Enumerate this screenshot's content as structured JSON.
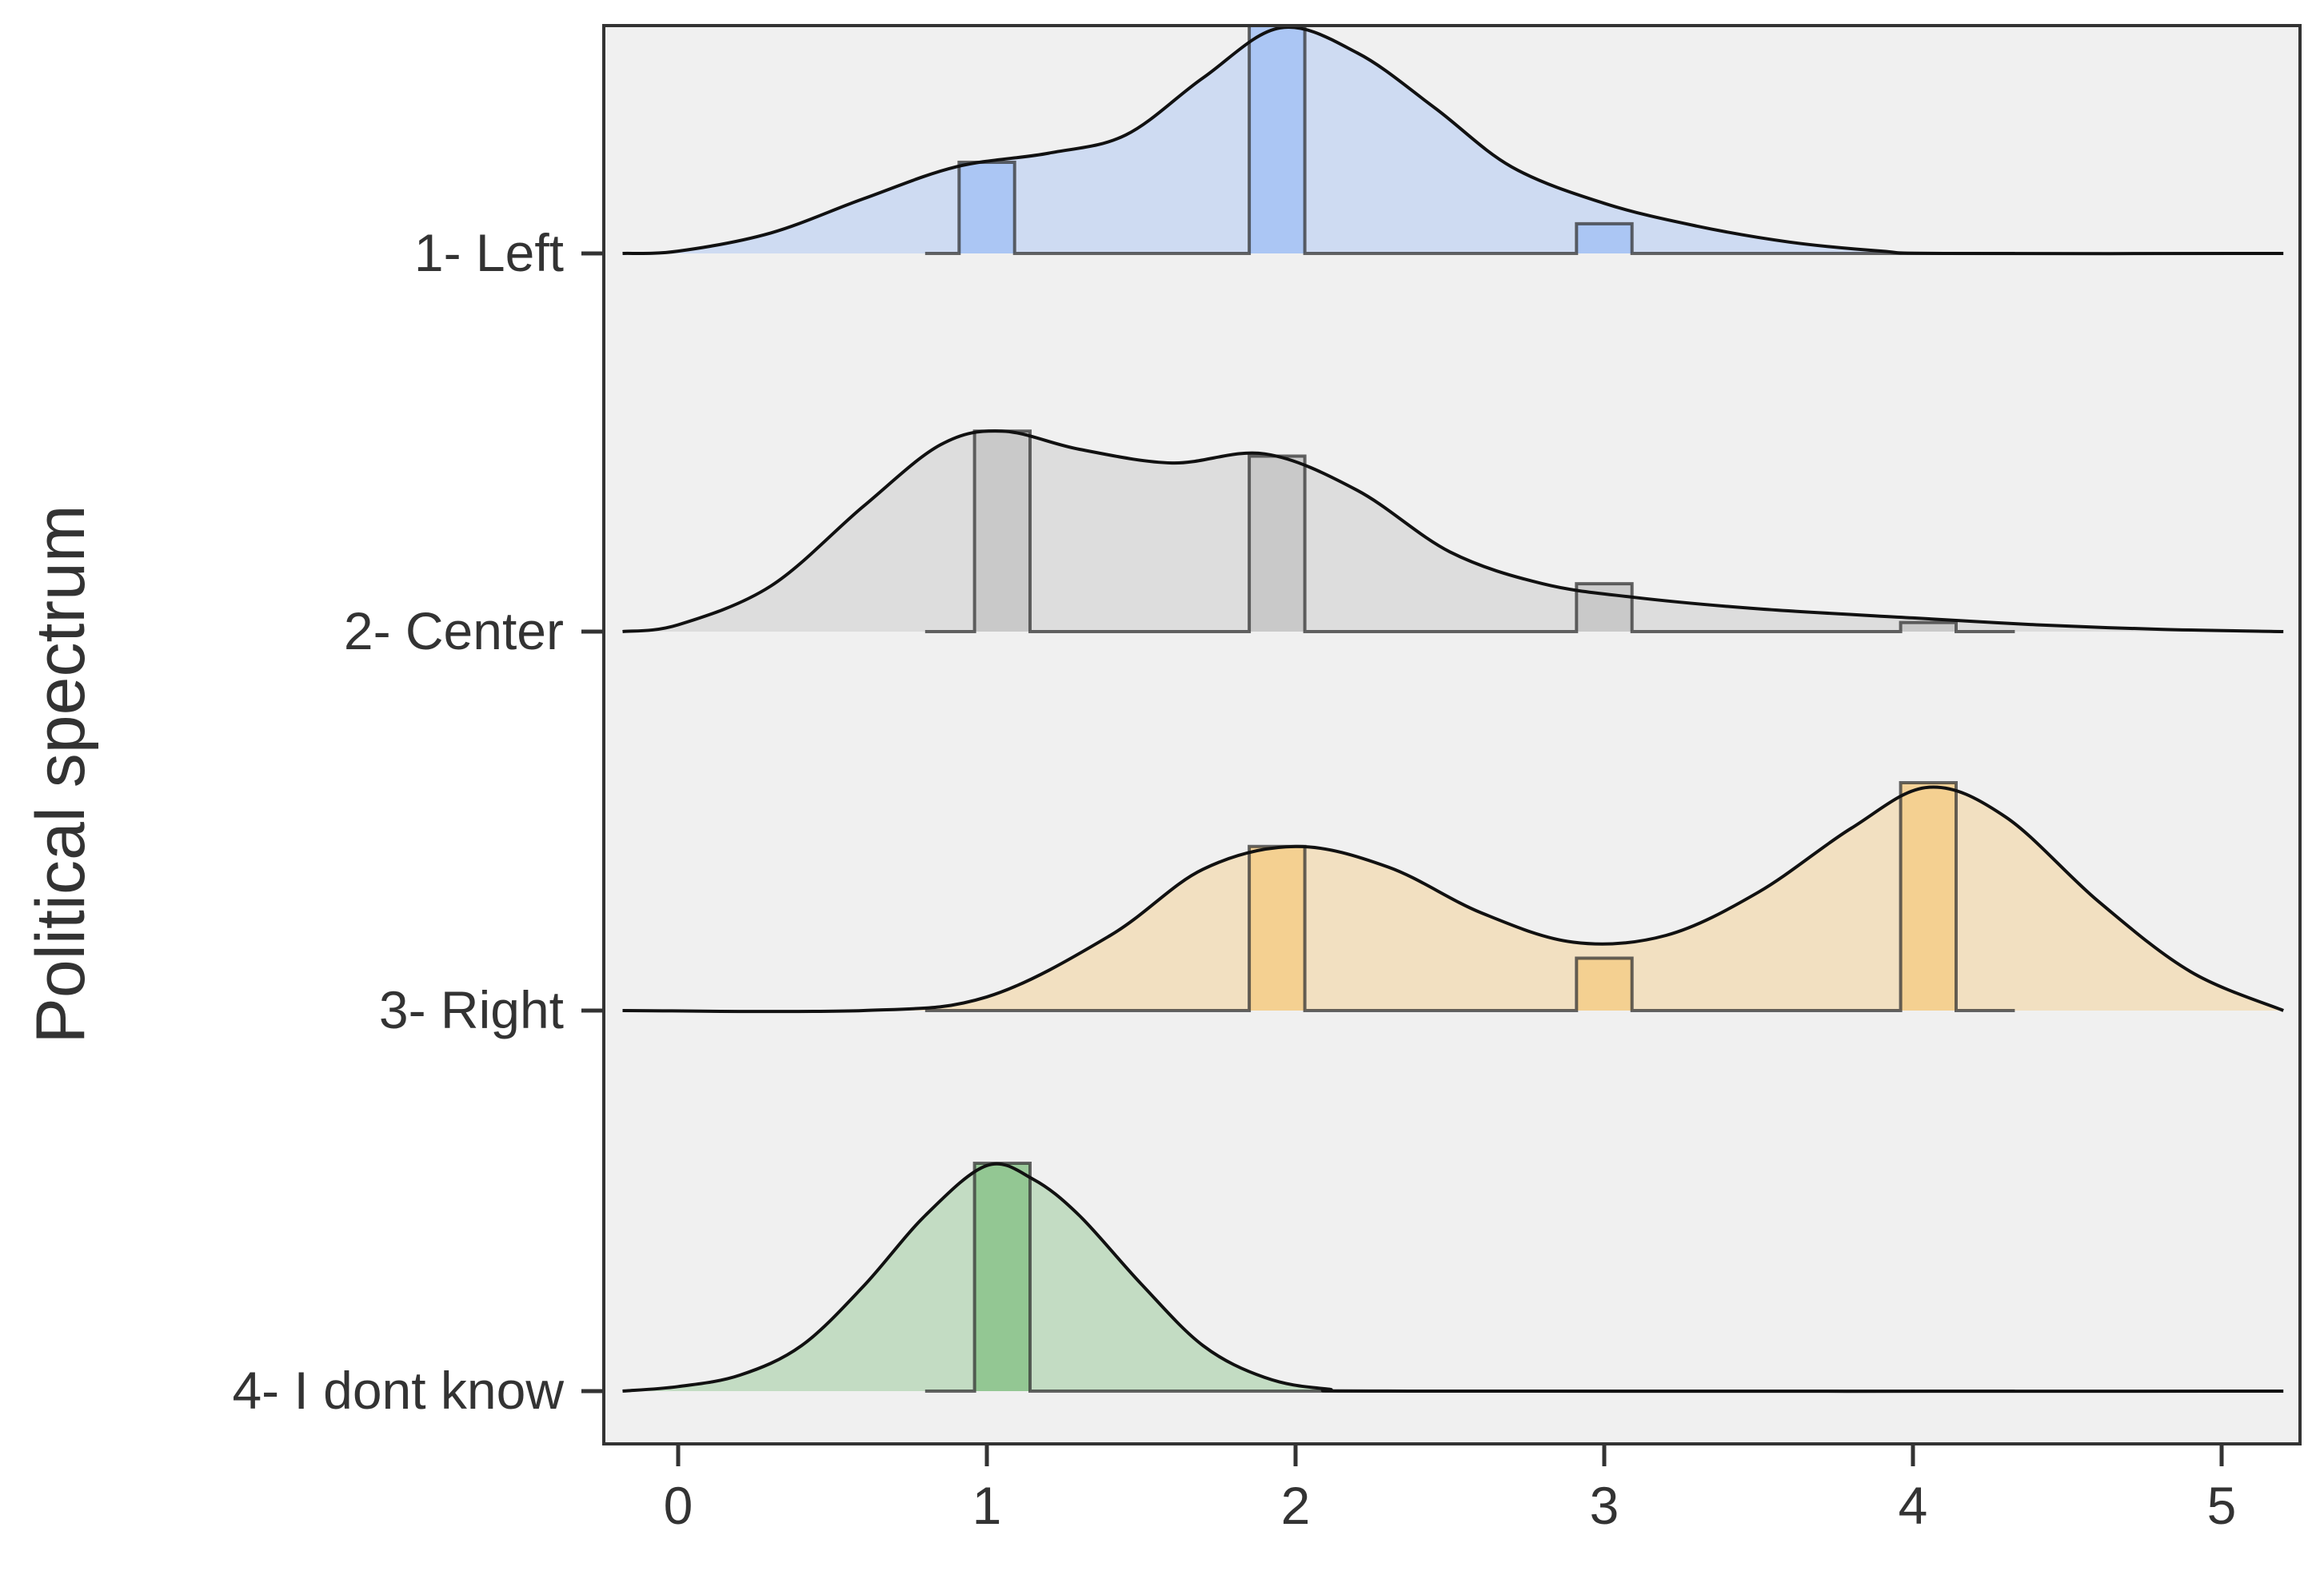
{
  "chart_data": {
    "type": "ridgeline",
    "ylabel": "Political spectrum",
    "xlabel": "",
    "xlim": [
      -0.25,
      5.2
    ],
    "x_ticks": [
      0,
      1,
      2,
      3,
      4,
      5
    ],
    "x_tick_labels": [
      "0",
      "1",
      "2",
      "3",
      "4",
      "5"
    ],
    "background": "#f0f0f0",
    "grid": false,
    "legend": "none",
    "histogram_bin_width": 0.18,
    "histogram_range": [
      0.8,
      4.33
    ],
    "density_range": [
      -0.18,
      5.2
    ],
    "series": [
      {
        "name": "1- Left",
        "fill": "#a4c2f4",
        "density_points": [
          [
            -0.18,
            0.0
          ],
          [
            0.0,
            0.01
          ],
          [
            0.3,
            0.09
          ],
          [
            0.6,
            0.24
          ],
          [
            0.9,
            0.38
          ],
          [
            1.2,
            0.44
          ],
          [
            1.45,
            0.52
          ],
          [
            1.7,
            0.77
          ],
          [
            1.95,
            0.99
          ],
          [
            2.2,
            0.88
          ],
          [
            2.45,
            0.64
          ],
          [
            2.7,
            0.38
          ],
          [
            3.0,
            0.22
          ],
          [
            3.3,
            0.12
          ],
          [
            3.6,
            0.05
          ],
          [
            3.9,
            0.01
          ],
          [
            4.1,
            0.0
          ],
          [
            5.2,
            0.0
          ]
        ],
        "histogram": [
          {
            "x": 1.0,
            "height": 0.4
          },
          {
            "x": 1.94,
            "height": 1.0
          },
          {
            "x": 3.0,
            "height": 0.13
          }
        ]
      },
      {
        "name": "2- Center",
        "fill": "#c6c6c6",
        "density_points": [
          [
            -0.18,
            0.0
          ],
          [
            0.0,
            0.03
          ],
          [
            0.3,
            0.2
          ],
          [
            0.6,
            0.55
          ],
          [
            0.85,
            0.82
          ],
          [
            1.05,
            0.88
          ],
          [
            1.3,
            0.8
          ],
          [
            1.6,
            0.74
          ],
          [
            1.9,
            0.78
          ],
          [
            2.2,
            0.62
          ],
          [
            2.5,
            0.35
          ],
          [
            2.8,
            0.21
          ],
          [
            3.1,
            0.15
          ],
          [
            3.5,
            0.1
          ],
          [
            4.0,
            0.06
          ],
          [
            4.4,
            0.03
          ],
          [
            4.8,
            0.01
          ],
          [
            5.2,
            0.0
          ]
        ],
        "histogram": [
          {
            "x": 1.05,
            "height": 0.88
          },
          {
            "x": 1.94,
            "height": 0.77
          },
          {
            "x": 3.0,
            "height": 0.21
          },
          {
            "x": 4.05,
            "height": 0.04
          }
        ]
      },
      {
        "name": "3- Right",
        "fill": "#f4cd88",
        "density_points": [
          [
            -0.18,
            0.0
          ],
          [
            0.6,
            0.0
          ],
          [
            1.0,
            0.06
          ],
          [
            1.4,
            0.33
          ],
          [
            1.7,
            0.62
          ],
          [
            2.0,
            0.72
          ],
          [
            2.3,
            0.63
          ],
          [
            2.6,
            0.43
          ],
          [
            2.9,
            0.3
          ],
          [
            3.2,
            0.33
          ],
          [
            3.5,
            0.52
          ],
          [
            3.8,
            0.8
          ],
          [
            4.05,
            0.98
          ],
          [
            4.3,
            0.85
          ],
          [
            4.6,
            0.48
          ],
          [
            4.9,
            0.17
          ],
          [
            5.2,
            0.0
          ]
        ],
        "histogram": [
          {
            "x": 1.94,
            "height": 0.72
          },
          {
            "x": 3.0,
            "height": 0.23
          },
          {
            "x": 4.05,
            "height": 1.0
          }
        ]
      },
      {
        "name": "4- I dont know",
        "fill": "#8bc38b",
        "density_points": [
          [
            -0.18,
            0.0
          ],
          [
            0.0,
            0.02
          ],
          [
            0.2,
            0.07
          ],
          [
            0.4,
            0.2
          ],
          [
            0.6,
            0.46
          ],
          [
            0.8,
            0.77
          ],
          [
            1.0,
            0.99
          ],
          [
            1.15,
            0.93
          ],
          [
            1.3,
            0.77
          ],
          [
            1.5,
            0.47
          ],
          [
            1.7,
            0.2
          ],
          [
            1.9,
            0.06
          ],
          [
            2.1,
            0.01
          ],
          [
            2.4,
            0.0
          ],
          [
            5.2,
            0.0
          ]
        ],
        "histogram": [
          {
            "x": 1.05,
            "height": 1.0
          }
        ]
      }
    ]
  }
}
